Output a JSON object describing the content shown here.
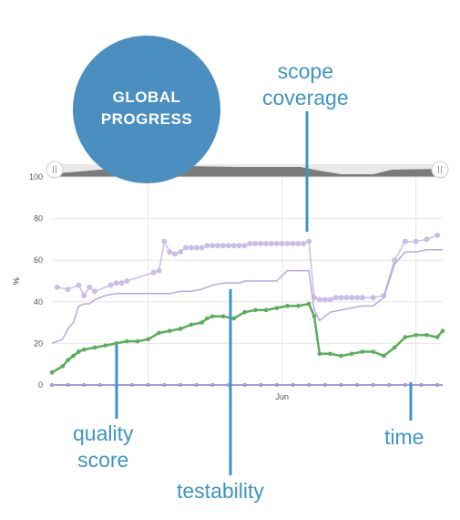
{
  "badge": {
    "line1": "GLOBAL",
    "line2": "PROGRESS"
  },
  "callouts": {
    "scope_line1": "scope",
    "scope_line2": "coverage",
    "quality_line1": "quality",
    "quality_line2": "score",
    "testability": "testability",
    "time": "time"
  },
  "colors": {
    "quality": "#5aad5a",
    "testability": "#b9a8e0",
    "scope": "#cbbde8",
    "baseline": "#a898dc",
    "callout": "#3f94c4",
    "badge": "#4a8fc0",
    "navigator": "#7b7b7b"
  },
  "chart_data": {
    "type": "line",
    "ylabel": "%",
    "ylim": [
      0,
      100
    ],
    "yticks": [
      0,
      20,
      40,
      60,
      80,
      100
    ],
    "xlim": [
      0,
      73
    ],
    "xtick_labels": [
      {
        "label": "Jun",
        "x": 43
      }
    ],
    "grid": true,
    "series": [
      {
        "key": "scope",
        "color": "#cbbde8",
        "markers": true,
        "x": [
          1,
          3,
          5,
          6,
          7,
          8,
          11,
          12,
          13,
          14,
          19,
          20,
          21,
          22,
          23,
          24,
          25,
          26,
          27,
          28,
          29,
          30,
          31,
          32,
          33,
          34,
          35,
          36,
          37,
          38,
          39,
          40,
          41,
          42,
          43,
          44,
          45,
          46,
          47,
          48,
          49,
          50,
          51,
          52,
          53,
          54,
          55,
          56,
          57,
          58,
          60,
          62,
          64,
          66,
          68,
          70,
          72
        ],
        "y": [
          47,
          46,
          48,
          43,
          47,
          45,
          48,
          49,
          49,
          50,
          54,
          55,
          69,
          64,
          63,
          64,
          66,
          66,
          66,
          66,
          67,
          67,
          67,
          67,
          67,
          67,
          67,
          67,
          68,
          68,
          68,
          68,
          68,
          68,
          68,
          68,
          68,
          68,
          68,
          69,
          42,
          41,
          41,
          41,
          42,
          42,
          42,
          42,
          42,
          42,
          42,
          43,
          60,
          69,
          69,
          70,
          72
        ]
      },
      {
        "key": "testability",
        "color": "#b9a8e0",
        "markers": false,
        "x": [
          0,
          2,
          3,
          4,
          5,
          6,
          7,
          8,
          10,
          12,
          14,
          16,
          18,
          20,
          22,
          24,
          26,
          28,
          30,
          32,
          33,
          34,
          35,
          36,
          38,
          40,
          42,
          44,
          45,
          46,
          48,
          49,
          50,
          51,
          52,
          54,
          56,
          58,
          60,
          62,
          64,
          66,
          68,
          70,
          72,
          73
        ],
        "y": [
          20,
          22,
          27,
          30,
          38,
          39,
          39,
          41,
          43,
          44,
          44,
          44,
          44,
          44,
          44,
          45,
          45,
          46,
          48,
          49,
          49,
          49,
          49,
          50,
          50,
          50,
          50,
          55,
          55,
          55,
          55,
          36,
          31,
          33,
          35,
          36,
          37,
          38,
          38,
          42,
          58,
          64,
          64,
          65,
          65,
          65
        ]
      },
      {
        "key": "quality",
        "color": "#5aad5a",
        "markers": true,
        "x": [
          0,
          2,
          3,
          4,
          5,
          6,
          8,
          10,
          12,
          14,
          16,
          18,
          20,
          22,
          24,
          26,
          28,
          29,
          30,
          32,
          34,
          36,
          38,
          40,
          42,
          44,
          46,
          48,
          49,
          50,
          52,
          54,
          56,
          58,
          60,
          62,
          64,
          66,
          68,
          70,
          72,
          73
        ],
        "y": [
          6,
          9,
          12,
          14,
          16,
          17,
          18,
          19,
          20,
          21,
          21,
          22,
          25,
          26,
          27,
          29,
          30,
          32,
          33,
          33,
          32,
          35,
          36,
          36,
          37,
          38,
          38,
          39,
          33,
          15,
          15,
          14,
          15,
          16,
          16,
          14,
          18,
          23,
          24,
          24,
          23,
          26
        ]
      },
      {
        "key": "baseline",
        "color": "#a898dc",
        "markers": true,
        "x": [
          0,
          73
        ],
        "y": [
          0,
          0
        ]
      }
    ]
  }
}
